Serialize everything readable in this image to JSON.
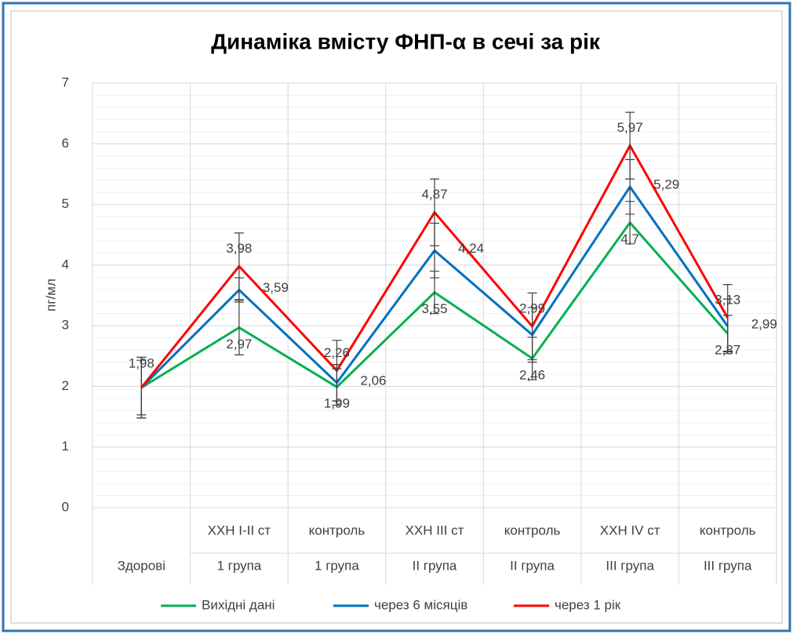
{
  "chart_data": {
    "type": "line",
    "title": "Динаміка вмісту ФНП-α в сечі за рік",
    "y_label": "пг/мл",
    "categories": [
      [
        null,
        "Здорові"
      ],
      [
        "ХХН І-ІІ ст",
        "1 група"
      ],
      [
        "контроль",
        "1 група"
      ],
      [
        "ХХН ІІІ ст",
        "ІІ група"
      ],
      [
        "контроль",
        "ІІ група"
      ],
      [
        "ХХН IV ст",
        "ІІІ група"
      ],
      [
        "контроль",
        "ІІІ група"
      ]
    ],
    "series": [
      {
        "name": "Вихідні дані",
        "color": "#00b050",
        "values": [
          1.98,
          2.97,
          1.99,
          3.55,
          2.46,
          4.7,
          2.87
        ],
        "value_labels": [
          "1,98",
          "2,97",
          "1,99",
          "3,55",
          "2,46",
          "4,7",
          "2,87"
        ],
        "errors": [
          0.5,
          0.45,
          0.3,
          0.35,
          0.35,
          0.35,
          0.3
        ]
      },
      {
        "name": "через 6 місяців",
        "color": "#0070c0",
        "values": [
          1.98,
          3.59,
          2.06,
          4.24,
          2.85,
          5.29,
          2.99
        ],
        "value_labels": [
          null,
          "3,59",
          "2,06",
          "4,24",
          null,
          "5,29",
          "2,99"
        ],
        "errors": [
          0.45,
          0.2,
          0.3,
          0.45,
          0.45,
          0.45,
          0.45
        ]
      },
      {
        "name": "через 1 рік",
        "color": "#ff0000",
        "values": [
          1.98,
          3.98,
          2.26,
          4.87,
          2.99,
          5.97,
          3.13
        ],
        "value_labels": [
          null,
          "3,98",
          "2,26",
          "4,87",
          "2,99",
          "5,97",
          "3,13"
        ],
        "errors": [
          0.5,
          0.55,
          0.5,
          0.55,
          0.55,
          0.55,
          0.55
        ]
      }
    ],
    "ylim": [
      0,
      7
    ],
    "yticks": [
      0,
      1,
      2,
      3,
      4,
      5,
      6,
      7
    ],
    "grid": true,
    "legend": "bottom"
  }
}
